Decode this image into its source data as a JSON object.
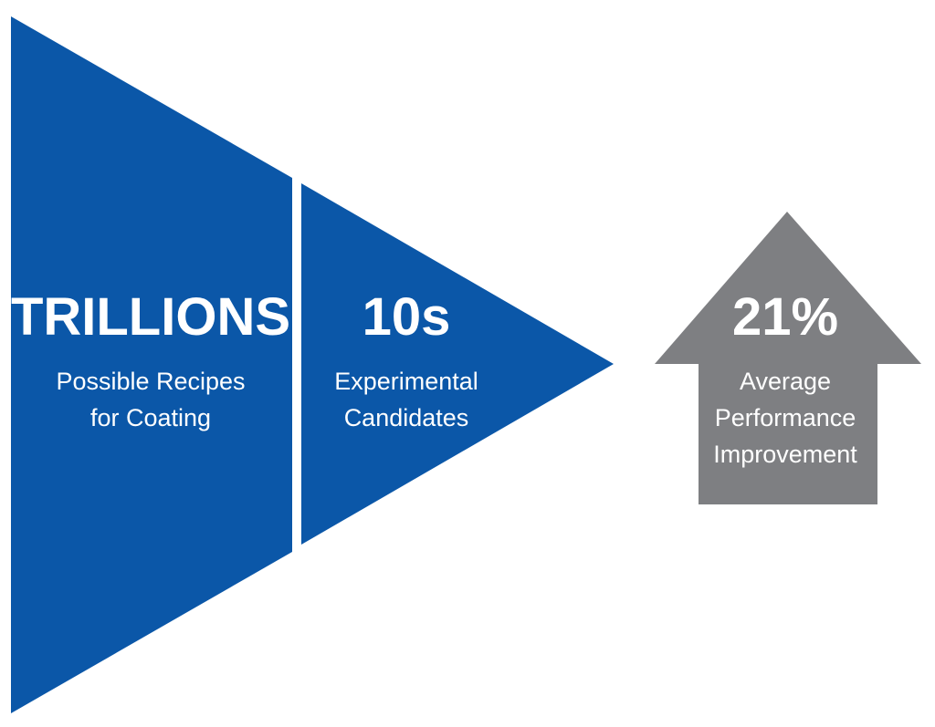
{
  "colors": {
    "funnel_blue": "#0b57a8",
    "arrow_gray": "#7e7f82",
    "text": "#ffffff",
    "background": "#ffffff"
  },
  "stages": [
    {
      "value": "TRILLIONS",
      "description_lines": [
        "Possible Recipes",
        "for Coating"
      ]
    },
    {
      "value": "10s",
      "description_lines": [
        "Experimental",
        "Candidates"
      ]
    }
  ],
  "result": {
    "value": "21%",
    "description_lines": [
      "Average",
      "Performance",
      "Improvement"
    ]
  },
  "icons": {
    "funnel": "funnel-triangle-shape",
    "arrow": "up-arrow-shape"
  }
}
